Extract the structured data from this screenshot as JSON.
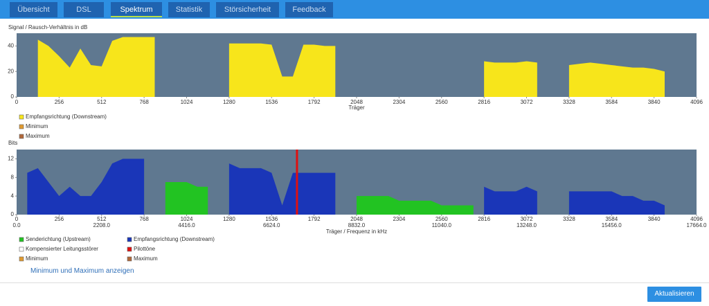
{
  "tabs": [
    "Übersicht",
    "DSL",
    "Spektrum",
    "Statistik",
    "Störsicherheit",
    "Feedback"
  ],
  "chart_data": [
    {
      "type": "area",
      "title": "Signal / Rausch-Verhältnis in dB",
      "x_label": "Träger",
      "x": [
        64,
        128,
        192,
        256,
        320,
        384,
        448,
        512,
        576,
        640,
        704,
        768,
        832,
        896,
        960,
        1024,
        1088,
        1152,
        1216,
        1280,
        1344,
        1408,
        1472,
        1536,
        1600,
        1664,
        1728,
        1792,
        1856,
        1920,
        1984,
        2048,
        2112,
        2176,
        2240,
        2304,
        2368,
        2432,
        2496,
        2560,
        2624,
        2688,
        2752,
        2816,
        2880,
        2944,
        3008,
        3072,
        3136,
        3200,
        3264,
        3328,
        3392,
        3456,
        3520,
        3584,
        3648,
        3712,
        3776,
        3840,
        3904,
        3968
      ],
      "series": [
        {
          "name": "Empfangsrichtung (Downstream)",
          "color": "#f7e51b",
          "values": [
            null,
            45,
            40,
            32,
            23,
            38,
            25,
            24,
            44,
            47,
            47,
            47,
            47,
            null,
            null,
            null,
            null,
            null,
            null,
            42,
            42,
            42,
            42,
            41,
            16,
            16,
            41,
            41,
            40,
            40,
            null,
            null,
            null,
            null,
            null,
            null,
            null,
            null,
            null,
            null,
            null,
            null,
            null,
            28,
            27,
            27,
            27,
            28,
            27,
            null,
            null,
            25,
            26,
            27,
            26,
            25,
            24,
            23,
            23,
            22,
            20,
            null
          ]
        }
      ],
      "legend_extra": [
        {
          "name": "Minimum",
          "color": "#e09a30"
        },
        {
          "name": "Maximum",
          "color": "#b0683a"
        }
      ],
      "xlim": [
        0,
        4096
      ],
      "xticks": [
        0,
        256,
        512,
        768,
        1024,
        1280,
        1536,
        1792,
        2048,
        2304,
        2560,
        2816,
        3072,
        3328,
        3584,
        3840,
        4096
      ],
      "ylim": [
        0,
        50
      ],
      "yticks": [
        0,
        20,
        40
      ],
      "plot_color": "#5f7890"
    },
    {
      "type": "area",
      "title": "Bits",
      "x_label": "Träger / Frequenz in kHz",
      "x": [
        0,
        64,
        128,
        192,
        256,
        320,
        384,
        448,
        512,
        576,
        640,
        704,
        768,
        832,
        896,
        960,
        1024,
        1088,
        1152,
        1216,
        1280,
        1344,
        1408,
        1472,
        1536,
        1600,
        1664,
        1728,
        1792,
        1856,
        1920,
        1984,
        2048,
        2112,
        2176,
        2240,
        2304,
        2368,
        2432,
        2496,
        2560,
        2624,
        2688,
        2752,
        2816,
        2880,
        2944,
        3008,
        3072,
        3136,
        3200,
        3264,
        3328,
        3392,
        3456,
        3520,
        3584,
        3648,
        3712,
        3776,
        3840,
        3904,
        3968,
        4032
      ],
      "series": [
        {
          "name": "Senderichtung (Upstream)",
          "color": "#22c322",
          "values": [
            null,
            5,
            null,
            null,
            null,
            null,
            null,
            null,
            null,
            null,
            null,
            null,
            null,
            null,
            7,
            7,
            7,
            6,
            6,
            null,
            null,
            null,
            null,
            null,
            null,
            null,
            null,
            null,
            null,
            null,
            null,
            null,
            4,
            4,
            4,
            4,
            3,
            3,
            3,
            3,
            2,
            2,
            2,
            2,
            null,
            null,
            null,
            null,
            null,
            null,
            null,
            null,
            null,
            null,
            null,
            null,
            null,
            null,
            null,
            null,
            null,
            null,
            null,
            null
          ]
        },
        {
          "name": "Empfangsrichtung (Downstream)",
          "color": "#1a36b8",
          "values": [
            null,
            9,
            10,
            7,
            4,
            6,
            4,
            4,
            7,
            11,
            12,
            12,
            12,
            null,
            null,
            null,
            null,
            null,
            null,
            null,
            11,
            10,
            10,
            10,
            9,
            2,
            9,
            9,
            9,
            9,
            9,
            null,
            null,
            null,
            null,
            null,
            null,
            null,
            null,
            null,
            null,
            null,
            null,
            null,
            6,
            5,
            5,
            5,
            6,
            5,
            null,
            null,
            5,
            5,
            5,
            5,
            5,
            4,
            4,
            3,
            3,
            2,
            null,
            null
          ]
        }
      ],
      "pilot": {
        "name": "Pilottöne",
        "color": "#e01010",
        "x": 1689
      },
      "legend_extra": [
        {
          "name": "Kompensierter Leitungsstörer",
          "color": "#ffffff"
        },
        {
          "name": "Minimum",
          "color": "#e09a30"
        },
        {
          "name": "Maximum",
          "color": "#b0683a"
        }
      ],
      "xlim": [
        0,
        4096
      ],
      "xticks": [
        0,
        256,
        512,
        768,
        1024,
        1280,
        1536,
        1792,
        2048,
        2304,
        2560,
        2816,
        3072,
        3328,
        3584,
        3840,
        4096
      ],
      "x2lim": [
        0,
        17664
      ],
      "x2ticks": [
        {
          "value": 0,
          "label": "0.0"
        },
        {
          "value": 2208,
          "label": "2208.0"
        },
        {
          "value": 4416,
          "label": "4416.0"
        },
        {
          "value": 6624,
          "label": "6624.0"
        },
        {
          "value": 8832,
          "label": "8832.0"
        },
        {
          "value": 11040,
          "label": "11040.0"
        },
        {
          "value": 13248,
          "label": "13248.0"
        },
        {
          "value": 15456,
          "label": "15456.0"
        },
        {
          "value": 17664,
          "label": "17664.0"
        }
      ],
      "ylim": [
        0,
        14
      ],
      "yticks": [
        0,
        4,
        8,
        12
      ],
      "plot_color": "#5f7890"
    }
  ],
  "link": "Minimum und Maximum anzeigen",
  "button": "Aktualisieren"
}
